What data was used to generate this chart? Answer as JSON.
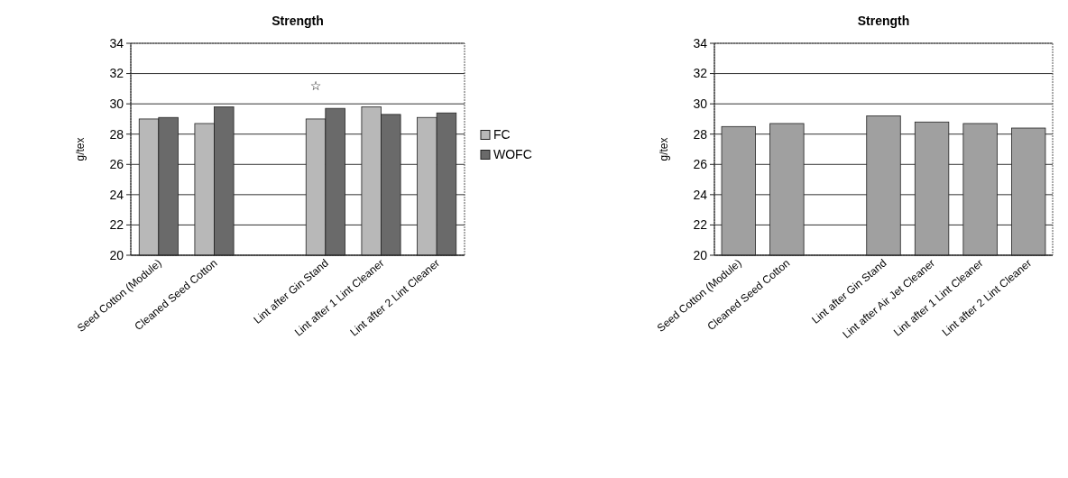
{
  "chart_data": [
    {
      "type": "bar",
      "title": "Strength",
      "ylabel": "g/tex",
      "categories": [
        "Seed Cotton (Module)",
        "Cleaned Seed Cotton",
        null,
        "Lint after Gin Stand",
        "Lint after 1 Lint Cleaner",
        "Lint after 2 Lint Cleaner"
      ],
      "series": [
        {
          "name": "FC",
          "color": "#b8b8b8",
          "values": [
            29.0,
            28.7,
            null,
            29.0,
            29.8,
            29.1
          ]
        },
        {
          "name": "WOFC",
          "color": "#6a6a6a",
          "values": [
            29.1,
            29.8,
            null,
            29.7,
            29.3,
            29.4
          ]
        }
      ],
      "ylim": [
        20,
        34
      ],
      "yticks": [
        20,
        22,
        24,
        26,
        28,
        30,
        32,
        34
      ],
      "grid": "y",
      "legend": "right",
      "annotations": [
        "☆"
      ]
    },
    {
      "type": "bar",
      "title": "Strength",
      "ylabel": "g/tex",
      "categories": [
        "Seed Cotton (Module)",
        "Cleaned Seed Cotton",
        null,
        "Lint after Gin Stand",
        "Lint after Air Jet Cleaner",
        "Lint after 1 Lint Cleaner",
        "Lint after 2 Lint Cleaner"
      ],
      "series": [
        {
          "color": "#a0a0a0",
          "values": [
            28.5,
            28.7,
            null,
            29.2,
            28.8,
            28.7,
            28.4
          ]
        }
      ],
      "ylim": [
        20,
        34
      ],
      "yticks": [
        20,
        22,
        24,
        26,
        28,
        30,
        32,
        34
      ],
      "grid": "y"
    }
  ]
}
